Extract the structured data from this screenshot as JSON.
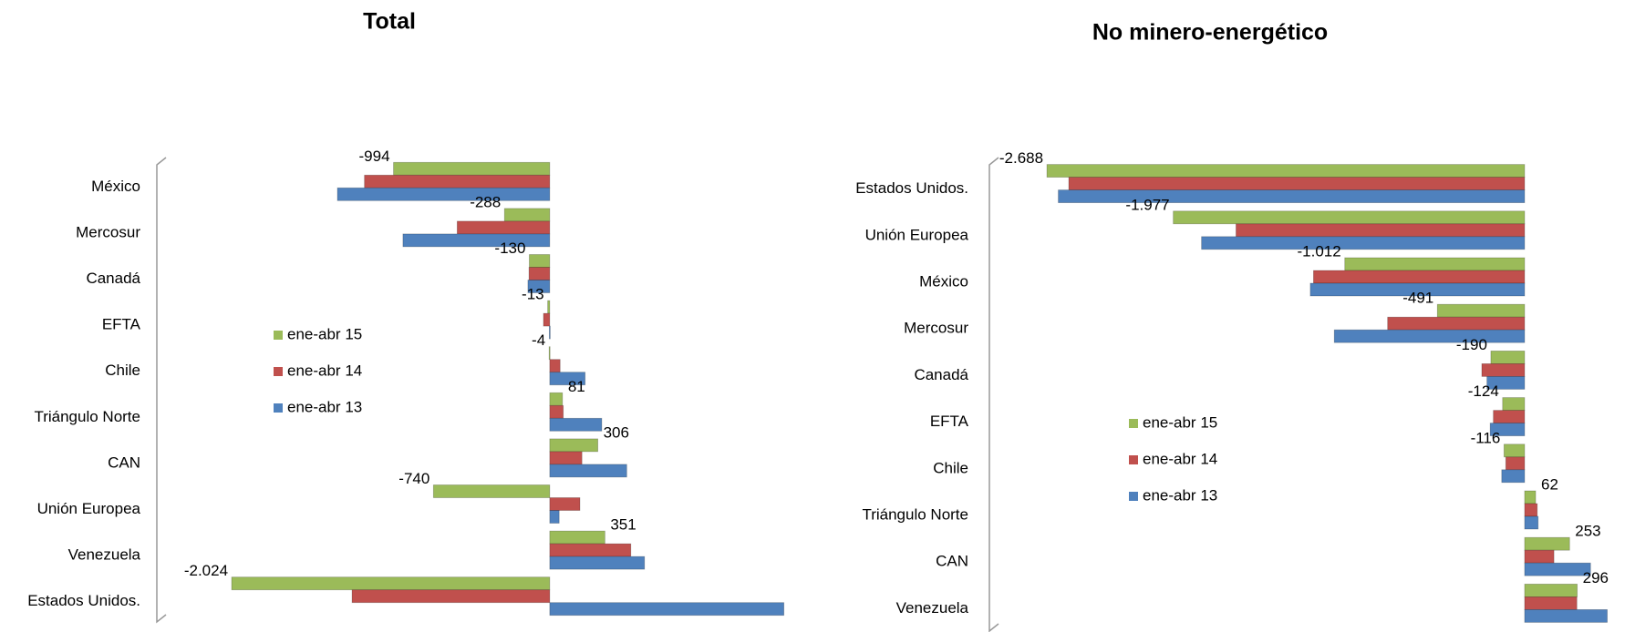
{
  "chart_data": [
    {
      "type": "bar",
      "title": "Total",
      "categories": [
        "México",
        "Mercosur",
        "Canadá",
        "EFTA",
        "Chile",
        "Triángulo Norte",
        "CAN",
        "Unión Europea",
        "Venezuela",
        "Estados Unidos."
      ],
      "series": [
        {
          "name": "ene-abr 15",
          "color": "#9bbb59",
          "values": [
            -994,
            -288,
            -130,
            -13,
            -4,
            81,
            306,
            -740,
            351,
            -2024
          ],
          "value_labels": [
            "-994",
            "-288",
            "-130",
            "-13",
            "-4",
            "81",
            "306",
            "-740",
            "351",
            "-2.024"
          ]
        },
        {
          "name": "ene-abr 14",
          "color": "#c0504d",
          "values": [
            -1179,
            -589,
            -132,
            -40,
            66,
            86,
            205,
            192,
            516,
            -1258
          ]
        },
        {
          "name": "ene-abr 13",
          "color": "#4f81bd",
          "values": [
            -1351,
            -934,
            -139,
            -3,
            225,
            331,
            490,
            60,
            603,
            1490
          ]
        }
      ],
      "xlim": [
        -2500,
        1550
      ]
    },
    {
      "type": "bar",
      "title": "No minero-energético",
      "categories": [
        "Estados Unidos.",
        "Unión Europea",
        "México",
        "Mercosur",
        "Canadá",
        "EFTA",
        "Chile",
        "Triángulo Norte",
        "CAN",
        "Venezuela"
      ],
      "series": [
        {
          "name": "ene-abr 15",
          "color": "#9bbb59",
          "values": [
            -2688,
            -1977,
            -1012,
            -491,
            -190,
            -124,
            -116,
            62,
            253,
            296
          ],
          "value_labels": [
            "-2.688",
            "-1.977",
            "-1.012",
            "-491",
            "-190",
            "-124",
            "-116",
            "62",
            "253",
            "296"
          ]
        },
        {
          "name": "ene-abr 14",
          "color": "#c0504d",
          "values": [
            -2565,
            -1624,
            -1188,
            -771,
            -241,
            -176,
            -106,
            71,
            165,
            294
          ]
        },
        {
          "name": "ene-abr 13",
          "color": "#4f81bd",
          "values": [
            -2624,
            -1818,
            -1206,
            -1071,
            -212,
            -194,
            -129,
            76,
            371,
            465
          ]
        }
      ],
      "xlim": [
        -2950,
        580
      ]
    }
  ]
}
